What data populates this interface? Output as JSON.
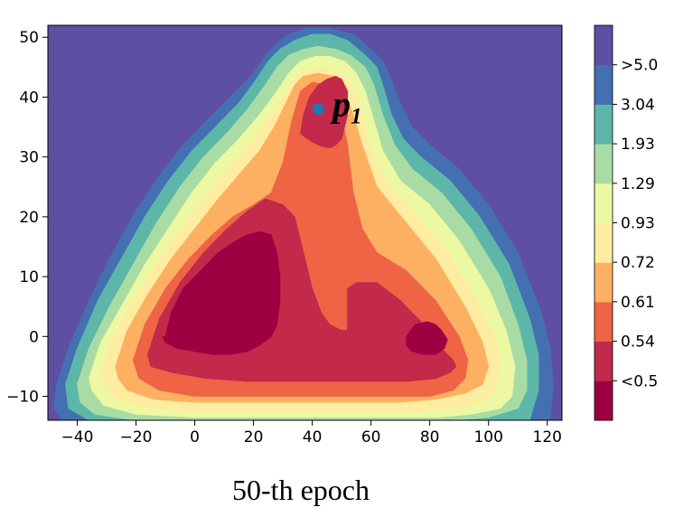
{
  "chart_data": {
    "type": "contour",
    "caption": "50-th epoch",
    "x_ticks": [
      "−40",
      "−20",
      "0",
      "20",
      "40",
      "60",
      "80",
      "100",
      "120"
    ],
    "x_tick_values": [
      -40,
      -20,
      0,
      20,
      40,
      60,
      80,
      100,
      120
    ],
    "y_ticks": [
      "−10",
      "0",
      "10",
      "20",
      "30",
      "40",
      "50"
    ],
    "y_tick_values": [
      -10,
      0,
      10,
      20,
      30,
      40,
      50
    ],
    "xlim": [
      -50,
      125
    ],
    "ylim": [
      -14,
      52
    ],
    "colorbar": {
      "labels": [
        "<0.5",
        "0.54",
        "0.61",
        "0.72",
        "0.93",
        "1.29",
        "1.93",
        "3.04",
        ">5.0"
      ],
      "colors": [
        "#9e0142",
        "#c2294a",
        "#ee6445",
        "#fdb062",
        "#feeda1",
        "#edf8a3",
        "#a9dca4",
        "#5db7a9",
        "#4470b1",
        "#5e4fa2"
      ]
    },
    "point": {
      "label_main": "p",
      "label_sub": "1",
      "x": 42,
      "y": 38,
      "color": "#1f77b4"
    },
    "regions": [
      {
        "level": 8,
        "x": [
          -47,
          -43,
          -36,
          -28,
          -20,
          -12,
          -4,
          4,
          12,
          20,
          24,
          28,
          32,
          38,
          46,
          54,
          60,
          64,
          66,
          70,
          74,
          80,
          90,
          100,
          110,
          118,
          121,
          122,
          121,
          118,
          108,
          95,
          80,
          60,
          40,
          20,
          0,
          -20,
          -36,
          -45,
          -48
        ],
        "y": [
          -8,
          -2,
          6,
          14,
          21,
          27,
          32,
          36,
          40,
          44,
          47,
          49,
          50.5,
          51.5,
          51.5,
          50.5,
          48,
          46,
          44,
          39,
          35,
          32,
          28,
          22,
          14,
          4,
          -2,
          -8,
          -14,
          -14,
          -14,
          -14,
          -14,
          -14,
          -14,
          -14,
          -14,
          -14,
          -14,
          -14,
          -12
        ]
      },
      {
        "level": 7,
        "x": [
          -44,
          -40,
          -33,
          -25,
          -17,
          -9,
          -1,
          7,
          15,
          21,
          25,
          29,
          34,
          40,
          46,
          52,
          58,
          62,
          64,
          67,
          71,
          77,
          87,
          97,
          107,
          114,
          117,
          117,
          114,
          104,
          92,
          78,
          60,
          40,
          20,
          0,
          -20,
          -36,
          -43
        ],
        "y": [
          -8,
          -2,
          6,
          13,
          20,
          26,
          31,
          35,
          39,
          43,
          46,
          48,
          49.5,
          50.5,
          50.5,
          49.5,
          47,
          45,
          42,
          37,
          33,
          30,
          26,
          20,
          12,
          3,
          -3,
          -9,
          -14,
          -14,
          -14,
          -14,
          -14,
          -14,
          -14,
          -14,
          -14,
          -14,
          -12
        ]
      },
      {
        "level": 6,
        "x": [
          -40,
          -36,
          -29,
          -21,
          -13,
          -5,
          3,
          11,
          18,
          24,
          28,
          32,
          37,
          42,
          48,
          53,
          58,
          61,
          64,
          68,
          74,
          84,
          94,
          104,
          110,
          113,
          113,
          110,
          100,
          88,
          75,
          60,
          40,
          20,
          0,
          -20,
          -34,
          -39
        ],
        "y": [
          -8,
          -2,
          5,
          12,
          19,
          25,
          30,
          34,
          38,
          42,
          45,
          47,
          48,
          48.5,
          48,
          47,
          45,
          42,
          37,
          32,
          28,
          24,
          18,
          10,
          2,
          -4,
          -9,
          -12,
          -13.5,
          -14,
          -14,
          -14,
          -14,
          -14,
          -14,
          -14,
          -13,
          -11
        ]
      },
      {
        "level": 5,
        "x": [
          -36,
          -32,
          -25,
          -17,
          -9,
          -1,
          7,
          15,
          22,
          28,
          32,
          36,
          41,
          46,
          51,
          55,
          58,
          61,
          64,
          70,
          80,
          90,
          100,
          106,
          109,
          108,
          104,
          94,
          82,
          70,
          55,
          40,
          20,
          0,
          -20,
          -31,
          -35
        ],
        "y": [
          -7,
          -1,
          5,
          12,
          18,
          24,
          29,
          33,
          37,
          41,
          44,
          46,
          46.8,
          46.8,
          46,
          44,
          41,
          36,
          31,
          26,
          22,
          16,
          8,
          1,
          -5,
          -10,
          -12,
          -13,
          -13.5,
          -13.5,
          -13.5,
          -13.5,
          -13.5,
          -13.5,
          -13,
          -11.5,
          -9
        ]
      },
      {
        "level": 4,
        "x": [
          -32,
          -28,
          -21,
          -13,
          -5,
          3,
          11,
          18,
          24,
          30,
          34,
          38,
          43,
          48,
          52,
          55,
          58,
          61,
          66,
          76,
          86,
          96,
          102,
          104,
          102,
          98,
          88,
          76,
          62,
          48,
          32,
          16,
          0,
          -16,
          -27,
          -31
        ],
        "y": [
          -6,
          0,
          6,
          12,
          18,
          23,
          28,
          32,
          36,
          40,
          43,
          44.5,
          45,
          44.5,
          43,
          40,
          35,
          30,
          25,
          20,
          14,
          6,
          0,
          -5,
          -9,
          -11,
          -12,
          -12.5,
          -12.5,
          -12.5,
          -12.5,
          -12.5,
          -12.5,
          -12,
          -10.5,
          -8
        ]
      },
      {
        "level": 3,
        "x": [
          -27,
          -23,
          -16,
          -8,
          0,
          8,
          15,
          22,
          27,
          31,
          34,
          37,
          42,
          47,
          51,
          54,
          57,
          62,
          72,
          82,
          92,
          98,
          100,
          98,
          92,
          82,
          70,
          56,
          42,
          28,
          14,
          0,
          -14,
          -23,
          -26
        ],
        "y": [
          -5,
          1,
          7,
          13,
          18,
          23,
          27,
          31,
          35,
          39,
          42,
          43.5,
          44,
          43.5,
          41,
          37,
          32,
          25,
          19,
          13,
          5,
          -1,
          -5,
          -8,
          -9.5,
          -10.5,
          -11,
          -11,
          -11,
          -11,
          -11,
          -11,
          -10.5,
          -9,
          -7
        ]
      },
      {
        "level": 2,
        "x": [
          -21,
          -17,
          -10,
          -2,
          6,
          13,
          20,
          26,
          30,
          33,
          36,
          40,
          45,
          49,
          52,
          54,
          57,
          62,
          72,
          82,
          90,
          93,
          92,
          88,
          80,
          68,
          54,
          40,
          26,
          12,
          0,
          -12,
          -19
        ],
        "y": [
          -4,
          2,
          8,
          13,
          17,
          20,
          22,
          24,
          29,
          36,
          41,
          42.5,
          42,
          39,
          32,
          24,
          18,
          14,
          11,
          6,
          0,
          -4,
          -7,
          -9,
          -10,
          -10,
          -10,
          -10,
          -10,
          -10,
          -10,
          -9,
          -7
        ]
      },
      {
        "level": 1,
        "x": [
          -16,
          -12,
          -5,
          3,
          11,
          18,
          24,
          30,
          34,
          37,
          40,
          43,
          46,
          50,
          52,
          52,
          55,
          62,
          70,
          78,
          84,
          88,
          89,
          87,
          82,
          72,
          60,
          46,
          32,
          18,
          4,
          -8,
          -15
        ],
        "y": [
          -3,
          3,
          9,
          14,
          18,
          21,
          23,
          22,
          20,
          14,
          8,
          4,
          2,
          1,
          1,
          8,
          9,
          9,
          6,
          2,
          -2,
          -4,
          -5,
          -6,
          -7,
          -7.5,
          -7.5,
          -7.5,
          -7.5,
          -7.5,
          -7,
          -6,
          -5
        ]
      },
      {
        "level": 1,
        "x": [
          36,
          37,
          39,
          42,
          45,
          48,
          50,
          52,
          52,
          50,
          48,
          46,
          43,
          40,
          37,
          36
        ],
        "y": [
          34,
          37,
          40,
          42,
          43,
          43.5,
          43,
          41,
          37,
          33,
          32,
          31.5,
          31.8,
          32.5,
          33.5,
          34
        ]
      },
      {
        "level": 0,
        "x": [
          -10,
          -8,
          -4,
          2,
          8,
          14,
          18,
          22,
          26,
          28,
          29,
          29,
          28,
          26,
          22,
          18,
          12,
          6,
          0,
          -6,
          -10,
          -11,
          -11
        ],
        "y": [
          0,
          4,
          8,
          11,
          14,
          16,
          17,
          17.5,
          17,
          14,
          10,
          6,
          2,
          0,
          -1.5,
          -2.5,
          -3,
          -3,
          -2.5,
          -2,
          -1,
          0,
          0
        ]
      },
      {
        "level": 0,
        "x": [
          72,
          75,
          79,
          82,
          84,
          86,
          85,
          82,
          78,
          74,
          72,
          72
        ],
        "y": [
          0,
          2,
          2.5,
          2,
          1,
          -0.5,
          -2,
          -3,
          -3,
          -2.5,
          -1.5,
          0
        ]
      }
    ]
  }
}
